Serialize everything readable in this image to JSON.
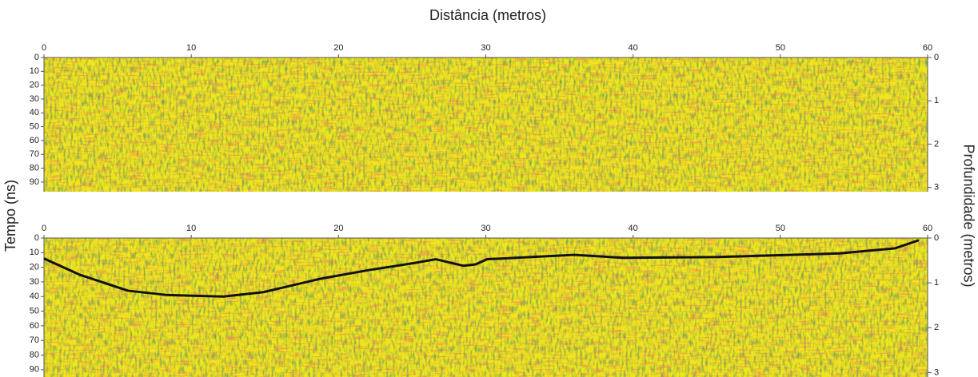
{
  "chart_data": [
    {
      "type": "radargram",
      "xlabel": "Distância (metros)",
      "ylabel": "Tempo (ns)",
      "y2label": "Profundidade (metros)",
      "xlim": [
        0,
        60
      ],
      "xticks": [
        0,
        10,
        20,
        30,
        40,
        50,
        60
      ],
      "ylim": [
        0,
        97
      ],
      "yticks": [
        0,
        10,
        20,
        30,
        40,
        50,
        60,
        70,
        80,
        90
      ],
      "y2lim": [
        0,
        3.1
      ],
      "y2ticks": [
        0,
        1,
        2,
        3
      ]
    },
    {
      "type": "line",
      "xlim": [
        0,
        60
      ],
      "xticks": [
        0,
        10,
        20,
        30,
        40,
        50,
        60
      ],
      "ylim": [
        0,
        95
      ],
      "yticks": [
        0,
        10,
        20,
        30,
        40,
        50,
        60,
        70,
        80,
        90
      ],
      "y2lim": [
        0,
        3.1
      ],
      "y2ticks": [
        0,
        1,
        2,
        3
      ],
      "x": [
        0,
        2.4,
        5.7,
        8.4,
        12.2,
        14.9,
        18.7,
        22,
        25.2,
        26.6,
        28.5,
        29.3,
        30.1,
        35,
        36,
        39.3,
        45.8,
        54,
        57.8,
        59.4
      ],
      "series": [
        {
          "color": "#111111",
          "values": [
            14,
            25,
            36,
            39,
            40,
            37,
            28,
            22,
            17,
            14.5,
            19,
            18,
            14.5,
            12,
            11.5,
            13.5,
            13,
            10.5,
            7,
            1.5
          ]
        }
      ]
    }
  ]
}
